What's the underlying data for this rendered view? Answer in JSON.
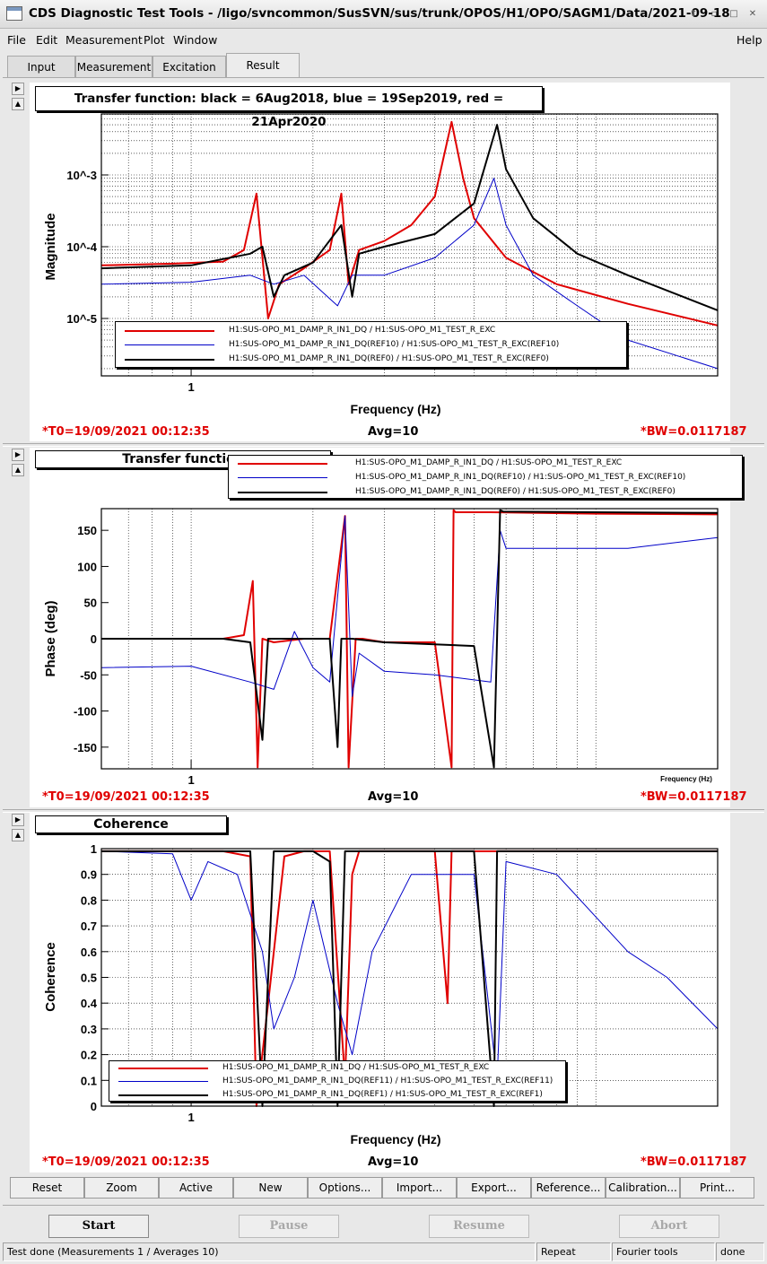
{
  "window": {
    "title": "CDS Diagnostic Test Tools - /ligo/svncommon/SusSVN/sus/trunk/OPOS/H1/OPO/SAGM1/Data/2021-09-18",
    "controls": [
      "up-icon",
      "restore-icon",
      "maximize-icon",
      "close-icon"
    ]
  },
  "menu": {
    "file": "File",
    "edit": "Edit",
    "measurement": "Measurement",
    "plot": "Plot",
    "window": "Window",
    "help": "Help"
  },
  "tabs": [
    {
      "label": "Input",
      "active": false
    },
    {
      "label": "Measurement",
      "active": false
    },
    {
      "label": "Excitation",
      "active": false
    },
    {
      "label": "Result",
      "active": true
    }
  ],
  "colors": {
    "red": "#e00000",
    "blue": "#0000c8",
    "black": "#000000"
  },
  "plots": [
    {
      "title": "Transfer function: black = 6Aug2018, blue = 19Sep2019, red = 21Apr2020",
      "ylabel": "Magnitude",
      "xlabel": "Frequency (Hz)",
      "xticks": [
        "1"
      ],
      "yticks": [
        "10^-3",
        "10^-4",
        "10^-5"
      ],
      "legend": [
        {
          "color": "red",
          "label": "H1:SUS-OPO_M1_DAMP_R_IN1_DQ / H1:SUS-OPO_M1_TEST_R_EXC"
        },
        {
          "color": "blue",
          "label": "H1:SUS-OPO_M1_DAMP_R_IN1_DQ(REF10) / H1:SUS-OPO_M1_TEST_R_EXC(REF10)"
        },
        {
          "color": "black",
          "label": "H1:SUS-OPO_M1_DAMP_R_IN1_DQ(REF0) / H1:SUS-OPO_M1_TEST_R_EXC(REF0)"
        }
      ],
      "t0": "*T0=19/09/2021 00:12:35",
      "avg": "Avg=10",
      "bw": "*BW=0.0117187"
    },
    {
      "title": "Transfer function",
      "ylabel": "Phase (deg)",
      "xlabel": "Frequency (Hz)",
      "xticks": [
        "1"
      ],
      "yticks": [
        "150",
        "100",
        "50",
        "0",
        "-50",
        "-100",
        "-150"
      ],
      "legend": [
        {
          "color": "red",
          "label": "H1:SUS-OPO_M1_DAMP_R_IN1_DQ / H1:SUS-OPO_M1_TEST_R_EXC"
        },
        {
          "color": "blue",
          "label": "H1:SUS-OPO_M1_DAMP_R_IN1_DQ(REF10) / H1:SUS-OPO_M1_TEST_R_EXC(REF10)"
        },
        {
          "color": "black",
          "label": "H1:SUS-OPO_M1_DAMP_R_IN1_DQ(REF0) / H1:SUS-OPO_M1_TEST_R_EXC(REF0)"
        }
      ],
      "t0": "*T0=19/09/2021 00:12:35",
      "avg": "Avg=10",
      "bw": "*BW=0.0117187"
    },
    {
      "title": "Coherence",
      "ylabel": "Coherence",
      "xlabel": "Frequency (Hz)",
      "xticks": [
        "1"
      ],
      "yticks": [
        "1",
        "0.9",
        "0.8",
        "0.7",
        "0.6",
        "0.5",
        "0.4",
        "0.3",
        "0.2",
        "0.1",
        "0"
      ],
      "legend": [
        {
          "color": "red",
          "label": "H1:SUS-OPO_M1_DAMP_R_IN1_DQ / H1:SUS-OPO_M1_TEST_R_EXC"
        },
        {
          "color": "blue",
          "label": "H1:SUS-OPO_M1_DAMP_R_IN1_DQ(REF11) / H1:SUS-OPO_M1_TEST_R_EXC(REF11)"
        },
        {
          "color": "black",
          "label": "H1:SUS-OPO_M1_DAMP_R_IN1_DQ(REF1) / H1:SUS-OPO_M1_TEST_R_EXC(REF1)"
        }
      ],
      "t0": "*T0=19/09/2021 00:12:35",
      "avg": "Avg=10",
      "bw": "*BW=0.0117187"
    }
  ],
  "toolbar": [
    "Reset",
    "Zoom",
    "Active",
    "New",
    "Options...",
    "Import...",
    "Export...",
    "Reference...",
    "Calibration...",
    "Print..."
  ],
  "commands": [
    {
      "label": "Start",
      "enabled": true
    },
    {
      "label": "Pause",
      "enabled": false
    },
    {
      "label": "Resume",
      "enabled": false
    },
    {
      "label": "Abort",
      "enabled": false
    }
  ],
  "status": {
    "message": "Test done (Measurements 1 / Averages 10)",
    "mode": "Repeat",
    "tools": "Fourier tools",
    "state": "done"
  },
  "chart_data": [
    {
      "type": "line",
      "title": "Transfer function: black = 6Aug2018, blue = 19Sep2019, red = 21Apr2020",
      "xlabel": "Frequency (Hz)",
      "ylabel": "Magnitude",
      "xscale": "log",
      "yscale": "log",
      "grid": true,
      "legend_position": "bottom",
      "series": [
        {
          "name": "H1:SUS-OPO_M1_DAMP_R_IN1_DQ / H1:SUS-OPO_M1_TEST_R_EXC",
          "color": "red",
          "x": [
            0.6,
            0.9,
            1.2,
            1.35,
            1.45,
            1.55,
            1.65,
            1.9,
            2.2,
            2.35,
            2.45,
            2.6,
            3.0,
            3.5,
            4.0,
            4.4,
            4.7,
            5.0,
            6.0,
            8.0,
            12.0,
            20.0
          ],
          "y": [
            5.5e-05,
            5.8e-05,
            6.2e-05,
            9e-05,
            0.00055,
            1e-05,
            3e-05,
            5e-05,
            9e-05,
            0.00055,
            3e-05,
            9e-05,
            0.00012,
            0.0002,
            0.0005,
            0.0055,
            0.0009,
            0.00025,
            7e-05,
            3e-05,
            1.6e-05,
            8e-06
          ]
        },
        {
          "name": "H1:SUS-OPO_M1_DAMP_R_IN1_DQ(REF10) / H1:SUS-OPO_M1_TEST_R_EXC(REF10)",
          "color": "blue",
          "x": [
            0.6,
            1.0,
            1.4,
            1.6,
            1.9,
            2.3,
            2.5,
            3.0,
            4.0,
            5.0,
            5.6,
            6.0,
            7.0,
            9.0,
            12.0,
            20.0
          ],
          "y": [
            3e-05,
            3.2e-05,
            4e-05,
            3e-05,
            4e-05,
            1.5e-05,
            4e-05,
            4e-05,
            7e-05,
            0.0002,
            0.0009,
            0.0002,
            4e-05,
            1.5e-05,
            5e-06,
            2e-06
          ]
        },
        {
          "name": "H1:SUS-OPO_M1_DAMP_R_IN1_DQ(REF0) / H1:SUS-OPO_M1_TEST_R_EXC(REF0)",
          "color": "black",
          "x": [
            0.6,
            1.0,
            1.4,
            1.5,
            1.6,
            1.7,
            2.0,
            2.35,
            2.5,
            2.6,
            3.0,
            4.0,
            5.0,
            5.7,
            6.0,
            7.0,
            9.0,
            12.0,
            20.0
          ],
          "y": [
            5e-05,
            5.5e-05,
            8e-05,
            0.0001,
            2e-05,
            4e-05,
            6e-05,
            0.0002,
            2e-05,
            8e-05,
            0.0001,
            0.00015,
            0.0004,
            0.005,
            0.0012,
            0.00025,
            8e-05,
            4e-05,
            1.3e-05
          ]
        }
      ]
    },
    {
      "type": "line",
      "title": "Transfer function",
      "xlabel": "Frequency (Hz)",
      "ylabel": "Phase (deg)",
      "xscale": "log",
      "ylim": [
        -180,
        180
      ],
      "grid": true,
      "legend_position": "top",
      "series": [
        {
          "name": "H1:SUS-OPO_M1_DAMP_R_IN1_DQ / H1:SUS-OPO_M1_TEST_R_EXC",
          "color": "red",
          "x": [
            0.6,
            1.2,
            1.35,
            1.42,
            1.46,
            1.5,
            1.6,
            1.9,
            2.2,
            2.4,
            2.45,
            2.55,
            2.65,
            3.0,
            4.0,
            4.4,
            4.45,
            4.5,
            5.5,
            10.0,
            20.0
          ],
          "y": [
            0,
            0,
            5,
            80,
            -178,
            0,
            -5,
            0,
            0,
            170,
            -178,
            0,
            0,
            -5,
            -5,
            -178,
            178,
            175,
            175,
            173,
            172
          ]
        },
        {
          "name": "H1:SUS-OPO_M1_DAMP_R_IN1_DQ(REF10) / H1:SUS-OPO_M1_TEST_R_EXC(REF10)",
          "color": "blue",
          "x": [
            0.6,
            1.0,
            1.4,
            1.6,
            1.8,
            2.0,
            2.2,
            2.4,
            2.5,
            2.6,
            3.0,
            4.0,
            5.5,
            5.8,
            6.0,
            8.0,
            12.0,
            20.0
          ],
          "y": [
            -40,
            -38,
            -60,
            -70,
            10,
            -40,
            -60,
            170,
            -80,
            -20,
            -45,
            -50,
            -60,
            150,
            125,
            125,
            125,
            140
          ]
        },
        {
          "name": "H1:SUS-OPO_M1_DAMP_R_IN1_DQ(REF0) / H1:SUS-OPO_M1_TEST_R_EXC(REF0)",
          "color": "black",
          "x": [
            0.6,
            1.2,
            1.4,
            1.5,
            1.55,
            1.6,
            1.9,
            2.2,
            2.3,
            2.35,
            2.5,
            3.0,
            5.0,
            5.6,
            5.8,
            5.9,
            10.0,
            20.0
          ],
          "y": [
            0,
            0,
            -5,
            -140,
            0,
            0,
            0,
            0,
            -150,
            0,
            0,
            -5,
            -10,
            -178,
            178,
            176,
            175,
            174
          ]
        }
      ]
    },
    {
      "type": "line",
      "title": "Coherence",
      "xlabel": "Frequency (Hz)",
      "ylabel": "Coherence",
      "xscale": "log",
      "ylim": [
        0,
        1
      ],
      "grid": true,
      "legend_position": "bottom",
      "series": [
        {
          "name": "H1:SUS-OPO_M1_DAMP_R_IN1_DQ / H1:SUS-OPO_M1_TEST_R_EXC",
          "color": "red",
          "x": [
            0.6,
            1.2,
            1.4,
            1.45,
            1.55,
            1.7,
            1.9,
            2.2,
            2.4,
            2.5,
            2.6,
            3.0,
            4.0,
            4.3,
            4.4,
            4.5,
            6.0,
            20.0
          ],
          "y": [
            0.99,
            0.99,
            0.97,
            0.0,
            0.4,
            0.97,
            0.99,
            0.99,
            0.1,
            0.9,
            0.99,
            0.99,
            0.99,
            0.4,
            0.99,
            0.99,
            0.99,
            0.99
          ]
        },
        {
          "name": "H1:SUS-OPO_M1_DAMP_R_IN1_DQ(REF11) / H1:SUS-OPO_M1_TEST_R_EXC(REF11)",
          "color": "blue",
          "x": [
            0.6,
            0.9,
            1.0,
            1.1,
            1.3,
            1.5,
            1.6,
            1.8,
            2.0,
            2.3,
            2.5,
            2.8,
            3.5,
            5.0,
            5.7,
            6.0,
            8.0,
            12.0,
            15.0,
            20.0
          ],
          "y": [
            0.99,
            0.98,
            0.8,
            0.95,
            0.9,
            0.6,
            0.3,
            0.5,
            0.8,
            0.4,
            0.2,
            0.6,
            0.9,
            0.9,
            0.1,
            0.95,
            0.9,
            0.6,
            0.5,
            0.3
          ]
        },
        {
          "name": "H1:SUS-OPO_M1_DAMP_R_IN1_DQ(REF1) / H1:SUS-OPO_M1_TEST_R_EXC(REF1)",
          "color": "black",
          "x": [
            0.6,
            1.2,
            1.4,
            1.5,
            1.6,
            1.7,
            2.0,
            2.2,
            2.3,
            2.4,
            2.5,
            3.0,
            5.0,
            5.6,
            5.7,
            5.8,
            20.0
          ],
          "y": [
            0.99,
            0.99,
            0.99,
            0.0,
            0.99,
            0.99,
            0.99,
            0.95,
            0.0,
            0.99,
            0.99,
            0.99,
            0.99,
            0.0,
            0.99,
            0.99,
            0.99
          ]
        }
      ]
    }
  ]
}
